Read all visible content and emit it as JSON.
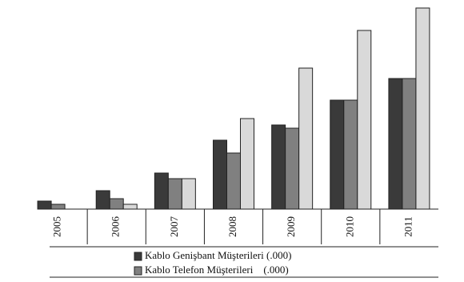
{
  "chart_data": {
    "type": "bar",
    "categories": [
      "2005",
      "2006",
      "2007",
      "2008",
      "2009",
      "2010",
      "2011"
    ],
    "series": [
      {
        "name": "Kablo Genişbant Müşterileri (.000)",
        "color": "#3a3a3a",
        "values": [
          10,
          23,
          45,
          86,
          105,
          136,
          163
        ]
      },
      {
        "name": "Kablo Telefon Müşterileri    (.000)",
        "color": "#808080",
        "values": [
          6,
          13,
          38,
          70,
          101,
          136,
          163
        ]
      },
      {
        "color": "#d9d9d9",
        "values": [
          0,
          6,
          38,
          113,
          176,
          223,
          251
        ]
      }
    ],
    "ylim": [
      0,
      251
    ],
    "grid": false
  }
}
